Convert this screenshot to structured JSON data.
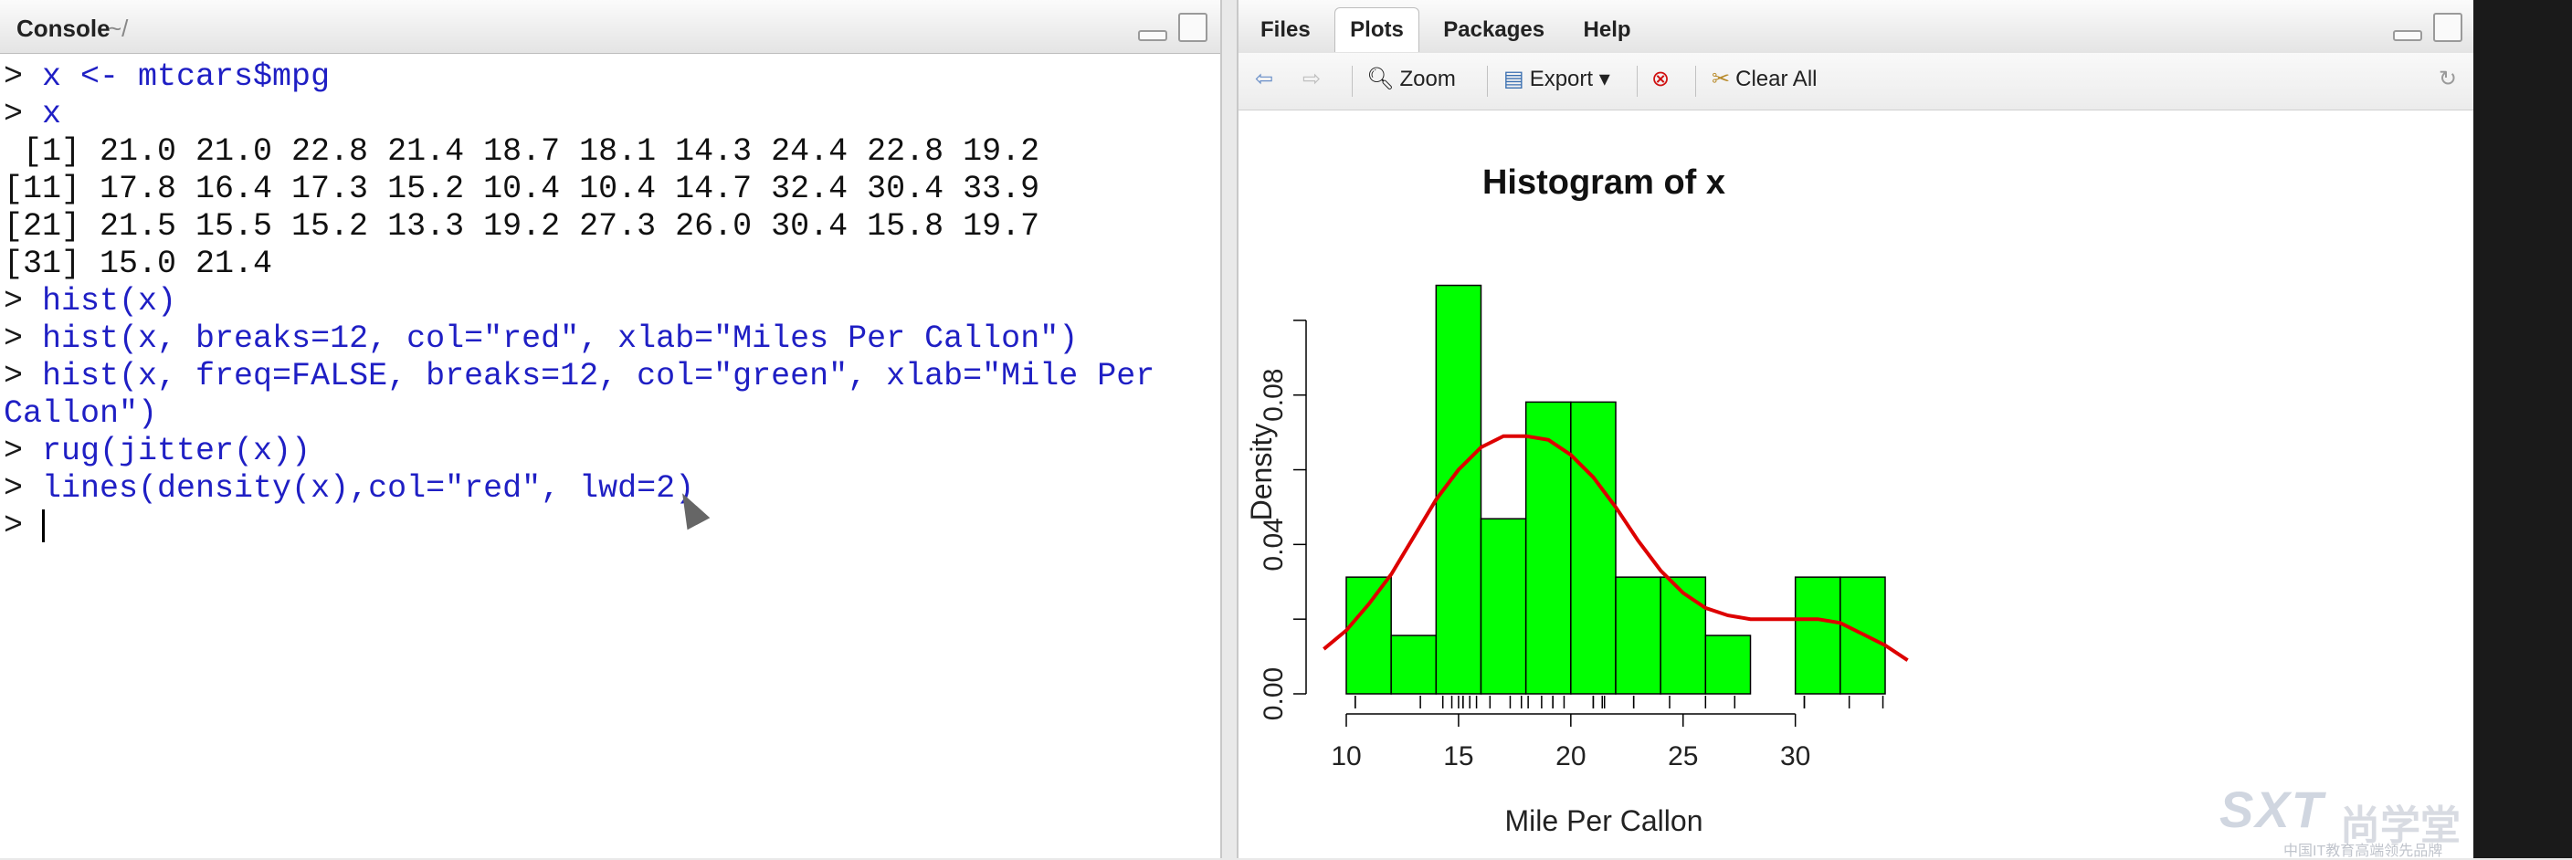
{
  "console": {
    "title": "Console",
    "path": "~/",
    "lines": [
      {
        "prompt": "> ",
        "text": "x <- mtcars$mpg",
        "kind": "cmd"
      },
      {
        "prompt": "> ",
        "text": "x",
        "kind": "cmd"
      },
      {
        "prompt": "",
        "text": " [1] 21.0 21.0 22.8 21.4 18.7 18.1 14.3 24.4 22.8 19.2",
        "kind": "out"
      },
      {
        "prompt": "",
        "text": "[11] 17.8 16.4 17.3 15.2 10.4 10.4 14.7 32.4 30.4 33.9",
        "kind": "out"
      },
      {
        "prompt": "",
        "text": "[21] 21.5 15.5 15.2 13.3 19.2 27.3 26.0 30.4 15.8 19.7",
        "kind": "out"
      },
      {
        "prompt": "",
        "text": "[31] 15.0 21.4",
        "kind": "out"
      },
      {
        "prompt": "> ",
        "text": "hist(x)",
        "kind": "cmd"
      },
      {
        "prompt": "> ",
        "text": "hist(x, breaks=12, col=\"red\", xlab=\"Miles Per Callon\")",
        "kind": "cmd"
      },
      {
        "prompt": "> ",
        "text": "hist(x, freq=FALSE, breaks=12, col=\"green\", xlab=\"Mile Per",
        "kind": "cmd"
      },
      {
        "prompt": "",
        "text": "Callon\")",
        "kind": "cmd"
      },
      {
        "prompt": "> ",
        "text": "rug(jitter(x))",
        "kind": "cmd"
      },
      {
        "prompt": "> ",
        "text": "lines(density(x),col=\"red\", lwd=2)",
        "kind": "cmd"
      },
      {
        "prompt": "> ",
        "text": "",
        "kind": "cursor"
      }
    ]
  },
  "plots_pane": {
    "tabs": [
      "Files",
      "Plots",
      "Packages",
      "Help"
    ],
    "active_tab": "Plots",
    "toolbar": {
      "zoom_label": "Zoom",
      "export_label": "Export",
      "clear_label": "Clear All"
    }
  },
  "chart_data": {
    "type": "histogram",
    "title": "Histogram of x",
    "xlabel": "Mile Per Callon",
    "ylabel": "Density",
    "bar_color": "#00ff00",
    "density_line_color": "#dd0000",
    "bins": [
      {
        "from": 10,
        "to": 12,
        "density": 0.03125
      },
      {
        "from": 12,
        "to": 14,
        "density": 0.015625
      },
      {
        "from": 14,
        "to": 16,
        "density": 0.109375
      },
      {
        "from": 16,
        "to": 18,
        "density": 0.046875
      },
      {
        "from": 18,
        "to": 20,
        "density": 0.078125
      },
      {
        "from": 20,
        "to": 22,
        "density": 0.078125
      },
      {
        "from": 22,
        "to": 24,
        "density": 0.03125
      },
      {
        "from": 24,
        "to": 26,
        "density": 0.03125
      },
      {
        "from": 26,
        "to": 28,
        "density": 0.015625
      },
      {
        "from": 28,
        "to": 30,
        "density": 0
      },
      {
        "from": 30,
        "to": 32,
        "density": 0.03125
      },
      {
        "from": 32,
        "to": 34,
        "density": 0.03125
      }
    ],
    "density_curve": [
      [
        9.0,
        0.012
      ],
      [
        10.0,
        0.017
      ],
      [
        11.0,
        0.024
      ],
      [
        12.0,
        0.032
      ],
      [
        13.0,
        0.042
      ],
      [
        14.0,
        0.052
      ],
      [
        15.0,
        0.06
      ],
      [
        16.0,
        0.066
      ],
      [
        17.0,
        0.069
      ],
      [
        18.0,
        0.069
      ],
      [
        19.0,
        0.068
      ],
      [
        20.0,
        0.064
      ],
      [
        21.0,
        0.058
      ],
      [
        22.0,
        0.05
      ],
      [
        23.0,
        0.041
      ],
      [
        24.0,
        0.033
      ],
      [
        25.0,
        0.027
      ],
      [
        26.0,
        0.023
      ],
      [
        27.0,
        0.021
      ],
      [
        28.0,
        0.02
      ],
      [
        29.0,
        0.02
      ],
      [
        30.0,
        0.02
      ],
      [
        31.0,
        0.02
      ],
      [
        32.0,
        0.019
      ],
      [
        33.0,
        0.016
      ],
      [
        34.0,
        0.013
      ],
      [
        35.0,
        0.009
      ]
    ],
    "rug": [
      21.0,
      21.0,
      22.8,
      21.4,
      18.7,
      18.1,
      14.3,
      24.4,
      22.8,
      19.2,
      17.8,
      16.4,
      17.3,
      15.2,
      10.4,
      10.4,
      14.7,
      32.4,
      30.4,
      33.9,
      21.5,
      15.5,
      15.2,
      13.3,
      19.2,
      27.3,
      26.0,
      30.4,
      15.8,
      19.7,
      15.0,
      21.4
    ],
    "x_ticks": [
      10,
      15,
      20,
      25,
      30
    ],
    "y_ticks": [
      0.0,
      0.04,
      0.08
    ],
    "y_tick_labels": [
      "0.00",
      "0.04",
      "0.08"
    ],
    "xlim": [
      9,
      35
    ],
    "ylim": [
      0,
      0.11
    ]
  },
  "watermark": {
    "logo": "SXT",
    "cn": "尚学堂",
    "sub": "中国IT教育高端领先品牌"
  }
}
